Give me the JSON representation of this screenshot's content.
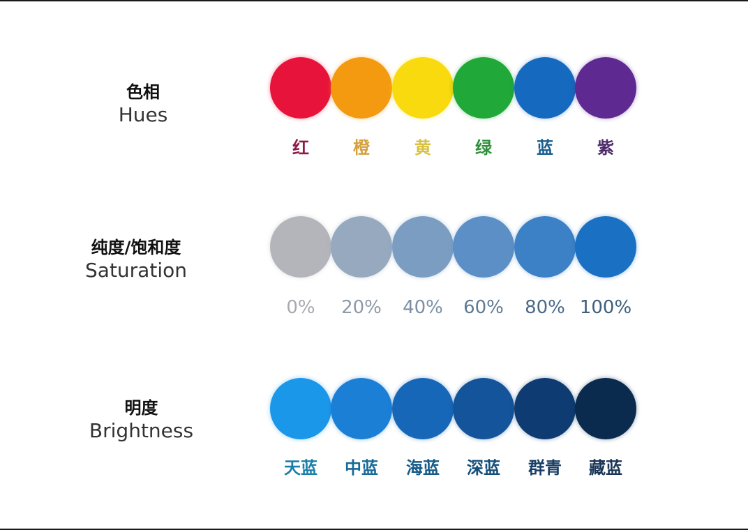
{
  "rows": [
    {
      "title_cn": "色相",
      "title_en": "Hues",
      "items": [
        {
          "label": "红",
          "color": "#E8133A",
          "text_color": "#8E1A48"
        },
        {
          "label": "橙",
          "color": "#F39A10",
          "text_color": "#D4A040"
        },
        {
          "label": "黄",
          "color": "#F8DA0E",
          "text_color": "#D8C040"
        },
        {
          "label": "绿",
          "color": "#20A838",
          "text_color": "#2E8E3A"
        },
        {
          "label": "蓝",
          "color": "#1569BF",
          "text_color": "#1A5E8E"
        },
        {
          "label": "紫",
          "color": "#5E2A92",
          "text_color": "#4C2A6A"
        }
      ]
    },
    {
      "title_cn": "纯度/饱和度",
      "title_en": "Saturation",
      "items": [
        {
          "label": "0%",
          "color": "#B4B5BA",
          "text_color": "#A7A9AE"
        },
        {
          "label": "20%",
          "color": "#96A9BE",
          "text_color": "#8E9AA8"
        },
        {
          "label": "40%",
          "color": "#7B9DC2",
          "text_color": "#7C8FA4"
        },
        {
          "label": "60%",
          "color": "#5C8FC5",
          "text_color": "#5E7A94"
        },
        {
          "label": "80%",
          "color": "#3C80C5",
          "text_color": "#4A6A88"
        },
        {
          "label": "100%",
          "color": "#1A70C2",
          "text_color": "#3E5E7A"
        }
      ]
    },
    {
      "title_cn": "明度",
      "title_en": "Brightness",
      "items": [
        {
          "label": "天蓝",
          "color": "#1B97EA",
          "text_color": "#1A7FA8"
        },
        {
          "label": "中蓝",
          "color": "#1C7FD6",
          "text_color": "#176A98"
        },
        {
          "label": "海蓝",
          "color": "#1667B8",
          "text_color": "#155A88"
        },
        {
          "label": "深蓝",
          "color": "#13549A",
          "text_color": "#144E7A"
        },
        {
          "label": "群青",
          "color": "#0E3C72",
          "text_color": "#1A3F66"
        },
        {
          "label": "藏蓝",
          "color": "#0A2A4E",
          "text_color": "#1A3555"
        }
      ]
    }
  ]
}
